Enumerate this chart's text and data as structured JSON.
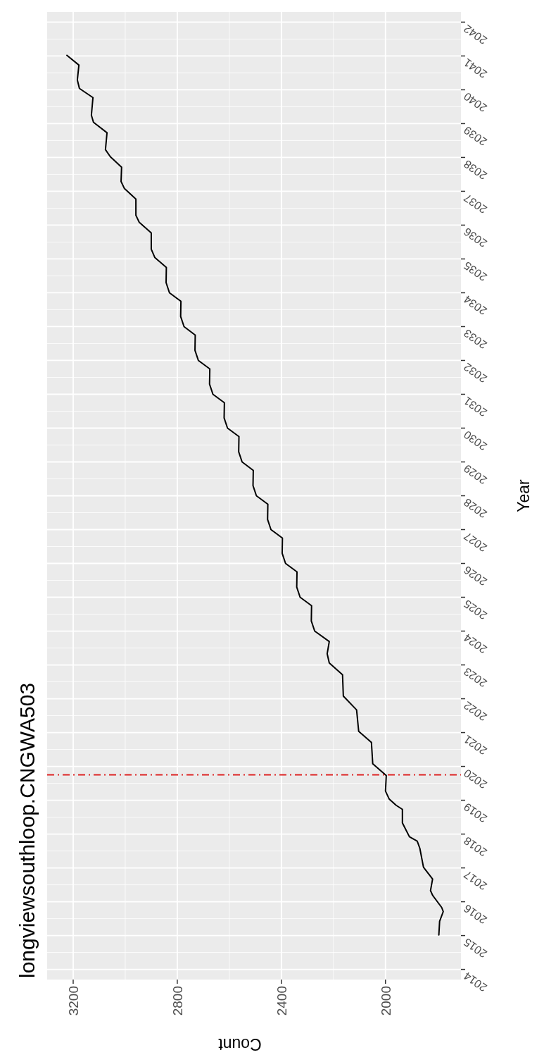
{
  "chart_data": {
    "type": "line",
    "title": "longviewsouthloop.CNGWA503",
    "xlabel": "Count",
    "ylabel": "Year",
    "color": "#000000",
    "grid": true,
    "values": [
      2015.02,
      2015.42,
      2015.71,
      2015.83,
      2016.19,
      2016.33,
      2016.67,
      2017.02,
      2017.58,
      2017.79,
      2017.92,
      2018.33,
      2018.73,
      2018.85,
      2019.04,
      2019.27,
      2019.73,
      2020.08,
      2020.71,
      2021.04,
      2021.67,
      2022.08,
      2022.71,
      2023.06,
      2023.33,
      2023.69,
      2024.0,
      2024.3,
      2024.75,
      2025.0,
      2025.3,
      2025.75,
      2026.0,
      2026.3,
      2026.75,
      2027.0,
      2027.3,
      2027.75,
      2028.0,
      2028.3,
      2028.75,
      2029.0,
      2029.3,
      2029.75,
      2030.0,
      2030.3,
      2030.75,
      2031.0,
      2031.3,
      2031.75,
      2032.0,
      2032.3,
      2032.75,
      2033.0,
      2033.3,
      2033.75,
      2034.0,
      2034.3,
      2034.75,
      2035.04,
      2035.29,
      2035.77,
      2036.08,
      2036.29,
      2036.77,
      2037.08,
      2037.29,
      2037.71,
      2038.02,
      2038.23,
      2038.73,
      2039.04,
      2039.25,
      2039.77,
      2040.04,
      2040.29,
      2040.73,
      2041.02
    ],
    "x": [
      1795,
      1792,
      1778,
      1784,
      1819,
      1827,
      1819,
      1854,
      1868,
      1878,
      1908,
      1935,
      1935,
      1959,
      1986,
      2000,
      1997,
      2049,
      2054,
      2103,
      2111,
      2162,
      2165,
      2216,
      2224,
      2216,
      2272,
      2285,
      2284,
      2328,
      2341,
      2340,
      2384,
      2397,
      2396,
      2440,
      2453,
      2452,
      2496,
      2509,
      2508,
      2551,
      2564,
      2563,
      2607,
      2620,
      2619,
      2663,
      2676,
      2675,
      2719,
      2732,
      2731,
      2774,
      2787,
      2786,
      2830,
      2843,
      2842,
      2886,
      2900,
      2900,
      2946,
      2959,
      2959,
      3003,
      3016,
      3014,
      3057,
      3076,
      3070,
      3122,
      3130,
      3124,
      3176,
      3184,
      3178,
      3224
    ],
    "ylim": [
      2013.7,
      2042.3
    ],
    "xlim": [
      3300,
      1710
    ],
    "yticks": [
      2014,
      2015,
      2016,
      2017,
      2018,
      2019,
      2020,
      2021,
      2022,
      2023,
      2024,
      2025,
      2026,
      2027,
      2028,
      2029,
      2030,
      2031,
      2032,
      2033,
      2034,
      2035,
      2036,
      2037,
      2038,
      2039,
      2040,
      2041,
      2042
    ],
    "xticks": [
      3200,
      2800,
      2400,
      2000
    ],
    "ref_lines": [
      {
        "axis": "y",
        "value": 2019.75,
        "color": "#dd2222",
        "line_style": "dashed"
      }
    ]
  }
}
